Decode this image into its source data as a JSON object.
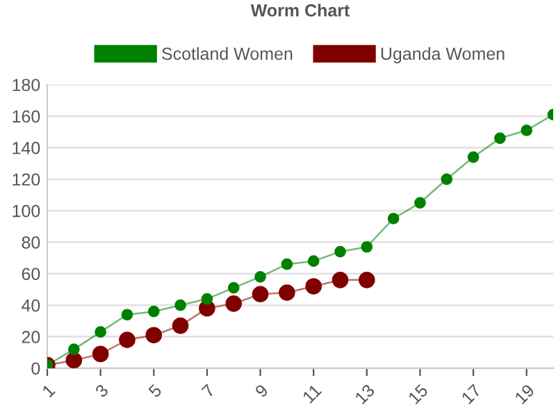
{
  "chart_data": {
    "type": "line",
    "title": "Worm Chart",
    "categories": [
      "1",
      null,
      "3",
      null,
      "5",
      null,
      "7",
      null,
      "9",
      null,
      "11",
      null,
      "13",
      null,
      "15",
      null,
      "17",
      null,
      "19",
      null
    ],
    "series": [
      {
        "name": "Scotland Women",
        "color": "#008000",
        "values": [
          2,
          12,
          23,
          34,
          36,
          40,
          44,
          51,
          58,
          66,
          68,
          74,
          77,
          95,
          105,
          120,
          134,
          146,
          151,
          161
        ]
      },
      {
        "name": "Uganda Women",
        "color": "#800000",
        "values": [
          2,
          5,
          9,
          18,
          21,
          27,
          38,
          41,
          47,
          48,
          52,
          56,
          56,
          null,
          null,
          null,
          null,
          null,
          null,
          null
        ]
      }
    ],
    "ylim": [
      0,
      180
    ],
    "yticks": [
      0,
      20,
      40,
      60,
      80,
      100,
      120,
      140,
      160,
      180
    ],
    "grid": "y",
    "legend": "top",
    "marker": "circle",
    "line_style": "solid"
  }
}
